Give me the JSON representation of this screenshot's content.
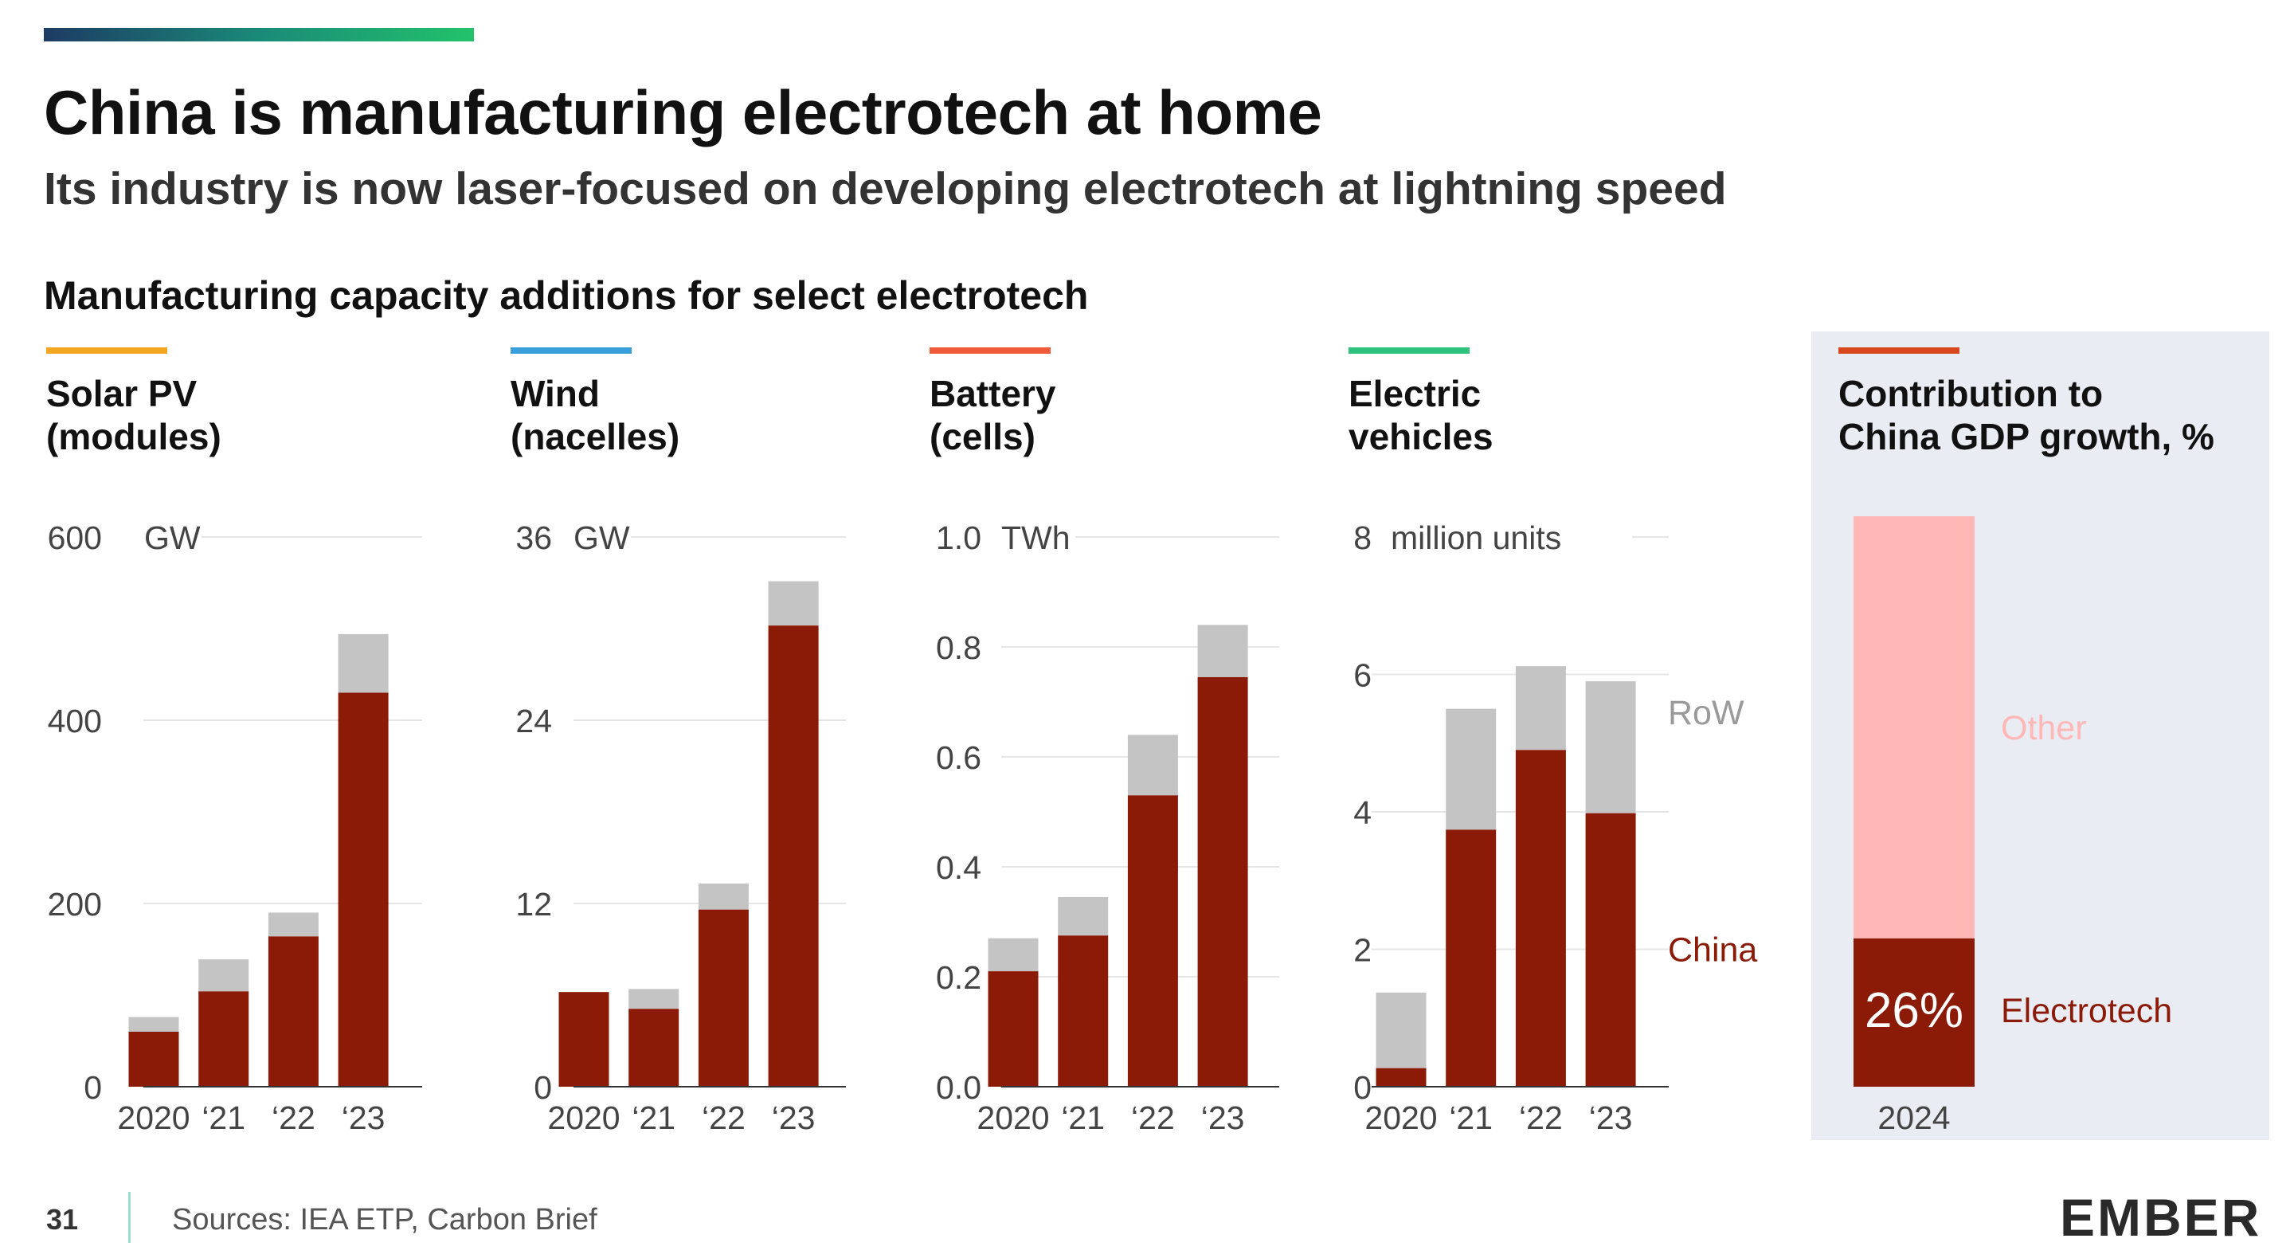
{
  "page": {
    "title": "China is manufacturing electrotech at home",
    "subtitle": "Its industry is now laser-focused on developing electrotech at lightning speed",
    "section_title": "Manufacturing capacity additions for select electrotech",
    "page_number": "31",
    "sources": "Sources: IEA ETP, Carbon Brief",
    "logo": "EMBER"
  },
  "colors": {
    "china": "#8b1a07",
    "row": "#c4c4c4",
    "other": "#ffb8b6",
    "solar_accent": "#f5a623",
    "wind_accent": "#3aa0dc",
    "battery_accent": "#ef5a3a",
    "ev_accent": "#2ec27e",
    "gdp_accent": "#d9471c"
  },
  "chart_data": [
    {
      "type": "bar",
      "stacked": true,
      "heading": [
        "Solar PV",
        "(modules)"
      ],
      "unit": "GW",
      "categories": [
        "2020",
        "‘21",
        "‘22",
        "‘23"
      ],
      "ylim": [
        0,
        600
      ],
      "yticks": [
        0,
        200,
        400,
        600
      ],
      "ytick_labels": [
        "0",
        "200",
        "400",
        "600"
      ],
      "series": [
        {
          "name": "China",
          "values": [
            60,
            104,
            164,
            430
          ]
        },
        {
          "name": "RoW",
          "values": [
            16,
            35,
            26,
            64
          ]
        }
      ]
    },
    {
      "type": "bar",
      "stacked": true,
      "heading": [
        "Wind",
        "(nacelles)"
      ],
      "unit": "GW",
      "categories": [
        "2020",
        "‘21",
        "‘22",
        "‘23"
      ],
      "ylim": [
        0,
        36
      ],
      "yticks": [
        0,
        12,
        24,
        36
      ],
      "ytick_labels": [
        "0",
        "12",
        "24",
        "36"
      ],
      "series": [
        {
          "name": "China",
          "values": [
            6.2,
            5.1,
            11.6,
            30.2
          ]
        },
        {
          "name": "RoW",
          "values": [
            0,
            1.3,
            1.7,
            2.9
          ]
        }
      ]
    },
    {
      "type": "bar",
      "stacked": true,
      "heading": [
        "Battery",
        "(cells)"
      ],
      "unit": "TWh",
      "categories": [
        "2020",
        "‘21",
        "‘22",
        "‘23"
      ],
      "ylim": [
        0,
        1.0
      ],
      "yticks": [
        0,
        0.2,
        0.4,
        0.6,
        0.8,
        1.0
      ],
      "ytick_labels": [
        "0.0",
        "0.2",
        "0.4",
        "0.6",
        "0.8",
        "1.0"
      ],
      "series": [
        {
          "name": "China",
          "values": [
            0.21,
            0.275,
            0.53,
            0.745
          ]
        },
        {
          "name": "RoW",
          "values": [
            0.06,
            0.07,
            0.11,
            0.095
          ]
        }
      ]
    },
    {
      "type": "bar",
      "stacked": true,
      "heading": [
        "Electric",
        "vehicles"
      ],
      "unit": "million units",
      "categories": [
        "2020",
        "‘21",
        "‘22",
        "‘23"
      ],
      "ylim": [
        0,
        8
      ],
      "yticks": [
        0,
        2,
        4,
        6,
        8
      ],
      "ytick_labels": [
        "0",
        "2",
        "4",
        "6",
        "8"
      ],
      "series": [
        {
          "name": "China",
          "values": [
            0.27,
            3.74,
            4.9,
            3.98
          ]
        },
        {
          "name": "RoW",
          "values": [
            1.1,
            1.76,
            1.22,
            1.92
          ]
        }
      ],
      "series_labels": [
        "China",
        "RoW"
      ]
    },
    {
      "type": "bar",
      "stacked": true,
      "heading": [
        "Contribution to",
        "China GDP growth, %"
      ],
      "categories": [
        "2024"
      ],
      "ylim": [
        0,
        100
      ],
      "series": [
        {
          "name": "Electrotech",
          "values": [
            26
          ]
        },
        {
          "name": "Other",
          "values": [
            74
          ]
        }
      ],
      "data_label": "26%"
    }
  ]
}
